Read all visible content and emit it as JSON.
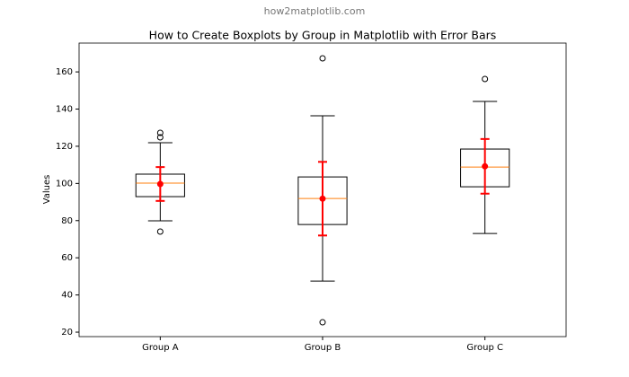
{
  "chart_data": {
    "type": "boxplot",
    "annotation": "how2matplotlib.com",
    "title": "How to Create Boxplots by Group in Matplotlib with Error Bars",
    "y_label": "Values",
    "categories": [
      "Group A",
      "Group B",
      "Group C"
    ],
    "boxes": [
      {
        "whislo": 79.9,
        "q1": 92.9,
        "med": 100.2,
        "q3": 105,
        "whishi": 121.9,
        "fliers": [
          74.1,
          124.8,
          127.2
        ],
        "mean": 99.7,
        "err": 9.1
      },
      {
        "whislo": 47.5,
        "q1": 77.9,
        "med": 91.9,
        "q3": 103.5,
        "whishi": 136.4,
        "fliers": [
          167.3,
          25.3
        ],
        "mean": 91.8,
        "err": 19.8
      },
      {
        "whislo": 73.1,
        "q1": 98.2,
        "med": 108.8,
        "q3": 118.5,
        "whishi": 144.1,
        "fliers": [
          156.2
        ],
        "mean": 109.2,
        "err": 14.7
      }
    ],
    "box_color": "#000000",
    "median_color": "#ff7f0e",
    "mean_color": "#ff0000",
    "ylim": [
      17.6,
      175.5
    ],
    "yticks": [
      20,
      40,
      60,
      80,
      100,
      120,
      140,
      160
    ]
  }
}
